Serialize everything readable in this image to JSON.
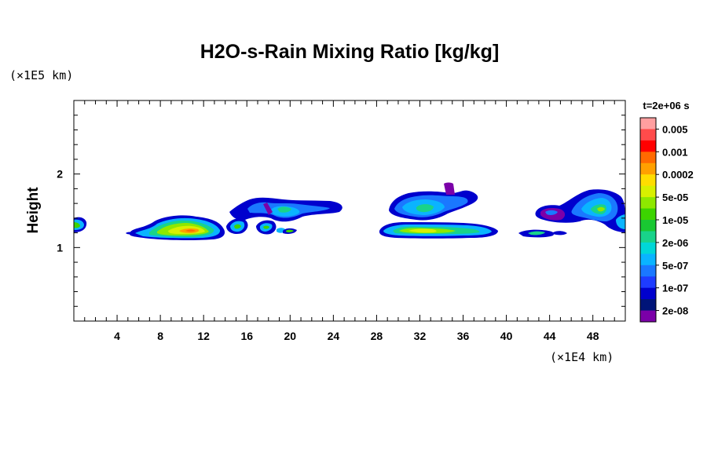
{
  "chart_data": {
    "type": "heatmap",
    "title": "H2O-s-Rain Mixing Ratio [kg/kg]",
    "ylabel": "Height",
    "xlabel": "",
    "x_unit": "(×1E4 km)",
    "y_unit": "(×1E5 km)",
    "time_label": "t=2e+06 s",
    "xlim": [
      0,
      51
    ],
    "ylim": [
      0,
      3
    ],
    "x_ticks": [
      "4",
      "8",
      "12",
      "16",
      "20",
      "24",
      "28",
      "32",
      "36",
      "40",
      "44",
      "48"
    ],
    "y_ticks": [
      "1",
      "2"
    ],
    "x_tick_values": [
      4,
      8,
      12,
      16,
      20,
      24,
      28,
      32,
      36,
      40,
      44,
      48
    ],
    "y_tick_values": [
      1,
      2
    ],
    "colorbar": {
      "labels": [
        "0.005",
        "0.001",
        "0.0002",
        "5e-05",
        "1e-05",
        "2e-06",
        "5e-07",
        "1e-07",
        "2e-08"
      ],
      "colors": [
        "#ff9fa0",
        "#ff4b4b",
        "#ff0000",
        "#ff6a00",
        "#ffa000",
        "#ffdd00",
        "#d8f000",
        "#8ee800",
        "#3cd400",
        "#19c832",
        "#19d38a",
        "#00d7d7",
        "#0ab4ff",
        "#1a78ff",
        "#1e3cff",
        "#0000cd",
        "#001478",
        "#7b00a8"
      ]
    },
    "regions": [
      {
        "x_range": [
          0,
          1.2
        ],
        "y_range": [
          1.2,
          1.4
        ],
        "max_level": "5e-05"
      },
      {
        "x_range": [
          5,
          14.5
        ],
        "y_range": [
          1.1,
          1.4
        ],
        "max_level": "0.0002"
      },
      {
        "x_range": [
          14.5,
          24.5
        ],
        "y_range": [
          1.15,
          1.65
        ],
        "max_level": "5e-05"
      },
      {
        "x_range": [
          27.5,
          39.5
        ],
        "y_range": [
          1.15,
          1.85
        ],
        "max_level": "5e-05"
      },
      {
        "x_range": [
          41.5,
          44
        ],
        "y_range": [
          1.12,
          1.22
        ],
        "max_level": "1e-05"
      },
      {
        "x_range": [
          43.5,
          51
        ],
        "y_range": [
          1.25,
          1.78
        ],
        "max_level": "1e-05"
      }
    ]
  }
}
